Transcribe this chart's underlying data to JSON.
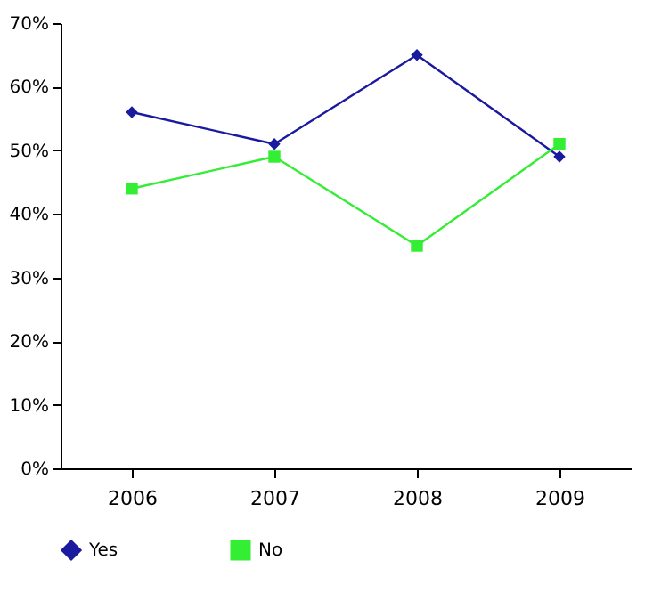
{
  "chart_data": {
    "type": "line",
    "categories": [
      "2006",
      "2007",
      "2008",
      "2009"
    ],
    "series": [
      {
        "name": "Yes",
        "color": "#1a1a9e",
        "marker": "diamond",
        "values": [
          56,
          51,
          65,
          49
        ]
      },
      {
        "name": "No",
        "color": "#33ee33",
        "marker": "square",
        "values": [
          44,
          49,
          35,
          51
        ]
      }
    ],
    "ylim": [
      0,
      70
    ],
    "yticks": [
      {
        "value": 0,
        "label": "0%"
      },
      {
        "value": 10,
        "label": "10%"
      },
      {
        "value": 20,
        "label": "20%"
      },
      {
        "value": 30,
        "label": "30%"
      },
      {
        "value": 40,
        "label": "40%"
      },
      {
        "value": 50,
        "label": "50%"
      },
      {
        "value": 60,
        "label": "60%"
      },
      {
        "value": 70,
        "label": "70%"
      }
    ],
    "grid": false,
    "legend": "bottom"
  }
}
